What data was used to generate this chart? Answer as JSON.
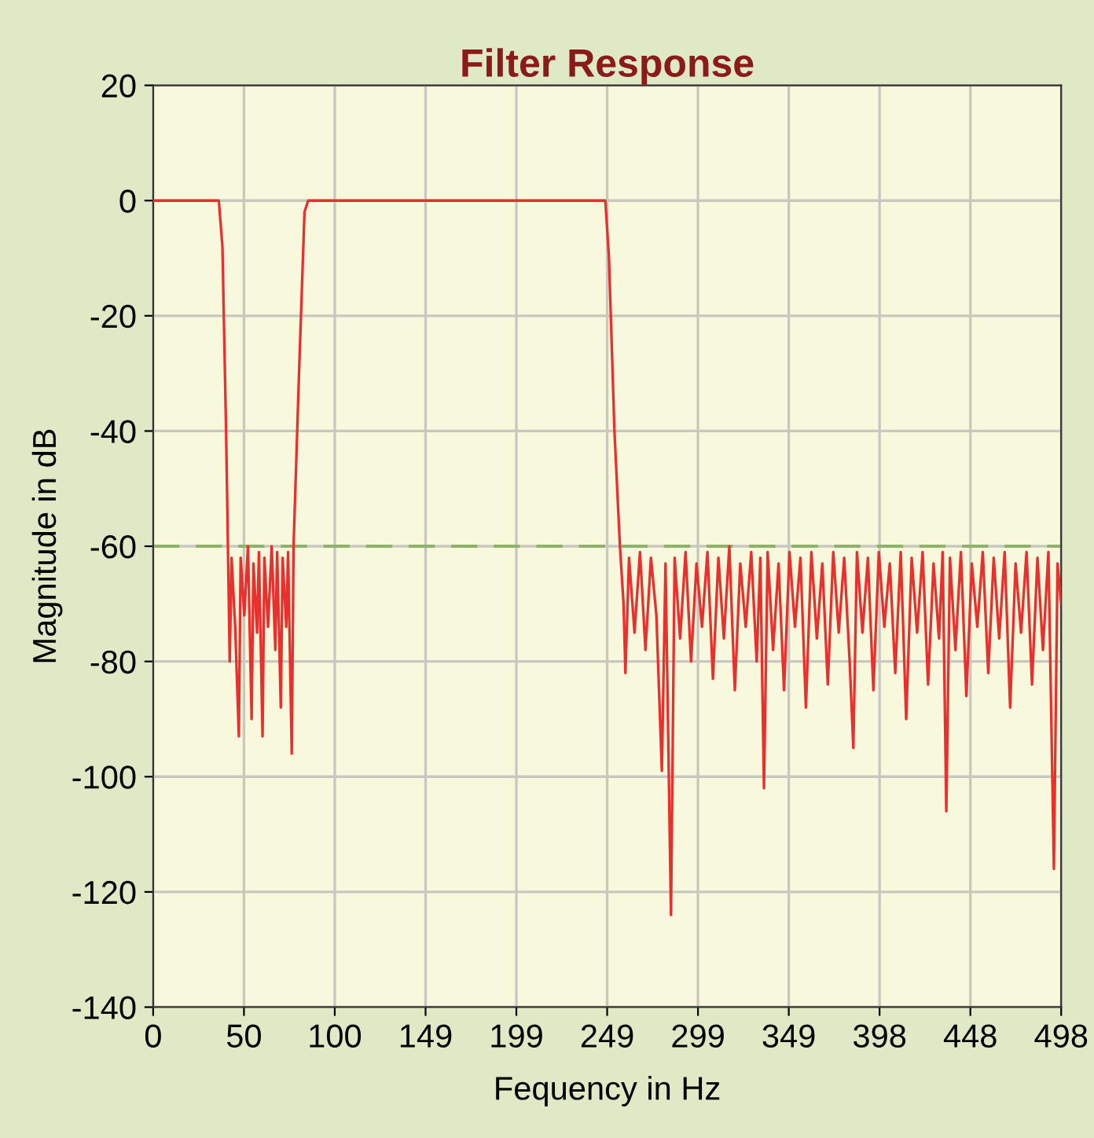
{
  "chart_data": {
    "type": "line",
    "title": "Filter Response",
    "xlabel": "Fequency in Hz",
    "ylabel": "Magnitude in dB",
    "xlim": [
      0,
      498
    ],
    "xticks": [
      0,
      {
        "value": 49.8,
        "label": "50"
      },
      {
        "value": 99.6,
        "label": "100"
      },
      {
        "value": 149.4,
        "label": "149"
      },
      {
        "value": 199.2,
        "label": "199"
      },
      249,
      {
        "value": 298.8,
        "label": "299"
      },
      {
        "value": 348.6,
        "label": "349"
      },
      {
        "value": 398.4,
        "label": "398"
      },
      {
        "value": 448.2,
        "label": "448"
      },
      498
    ],
    "ylim": [
      -140,
      20
    ],
    "yticks": [
      -140,
      -120,
      -100,
      -80,
      -60,
      -40,
      -20,
      0,
      20
    ],
    "grid": true,
    "line_style": "solid",
    "marker": "none",
    "ref_lines": [
      {
        "axis": "y",
        "value": -60,
        "label": null,
        "color": "#8db36b",
        "line_style": "dashed"
      }
    ],
    "series": [
      {
        "color": "#e8312f",
        "x": [
          0,
          36,
          38,
          40,
          41,
          42,
          43,
          45,
          47,
          48,
          50,
          52,
          54,
          55,
          57,
          58,
          60,
          61,
          63,
          65,
          67,
          68,
          70,
          71,
          73,
          74,
          76,
          77,
          80,
          83,
          85,
          248,
          250,
          253,
          256,
          258,
          259,
          261,
          264,
          267,
          270,
          273,
          276,
          279,
          281,
          284,
          286,
          289,
          292,
          295,
          298,
          301,
          304,
          307,
          310,
          313,
          316,
          319,
          322,
          325,
          328,
          331,
          333,
          335,
          337,
          340,
          343,
          346,
          349,
          352,
          355,
          358,
          361,
          364,
          367,
          370,
          373,
          376,
          379,
          382,
          384,
          386,
          389,
          392,
          395,
          398,
          401,
          404,
          407,
          410,
          413,
          416,
          419,
          422,
          425,
          428,
          431,
          433,
          435,
          437,
          440,
          443,
          446,
          449,
          452,
          455,
          458,
          461,
          464,
          467,
          470,
          473,
          476,
          479,
          482,
          485,
          488,
          491,
          494,
          496,
          498
        ],
        "values": [
          0,
          0,
          -8,
          -40,
          -60,
          -80,
          -62,
          -74,
          -93,
          -62,
          -72,
          -60,
          -90,
          -63,
          -75,
          -61,
          -93,
          -62,
          -74,
          -60,
          -78,
          -61,
          -88,
          -62,
          -74,
          -61,
          -96,
          -60,
          -30,
          -2,
          0,
          0,
          -10,
          -40,
          -60,
          -70,
          -82,
          -62,
          -75,
          -61,
          -78,
          -62,
          -72,
          -99,
          -63,
          -124,
          -62,
          -76,
          -61,
          -80,
          -63,
          -74,
          -61,
          -83,
          -62,
          -76,
          -60,
          -85,
          -63,
          -74,
          -61,
          -80,
          -62,
          -102,
          -61,
          -78,
          -63,
          -85,
          -61,
          -74,
          -62,
          -88,
          -61,
          -76,
          -63,
          -84,
          -61,
          -75,
          -62,
          -80,
          -95,
          -61,
          -75,
          -62,
          -85,
          -61,
          -74,
          -63,
          -82,
          -61,
          -90,
          -62,
          -75,
          -61,
          -84,
          -63,
          -76,
          -61,
          -106,
          -62,
          -78,
          -61,
          -86,
          -63,
          -74,
          -61,
          -82,
          -62,
          -76,
          -61,
          -88,
          -63,
          -75,
          -61,
          -84,
          -62,
          -78,
          -61,
          -116,
          -63,
          -70
        ]
      }
    ]
  }
}
